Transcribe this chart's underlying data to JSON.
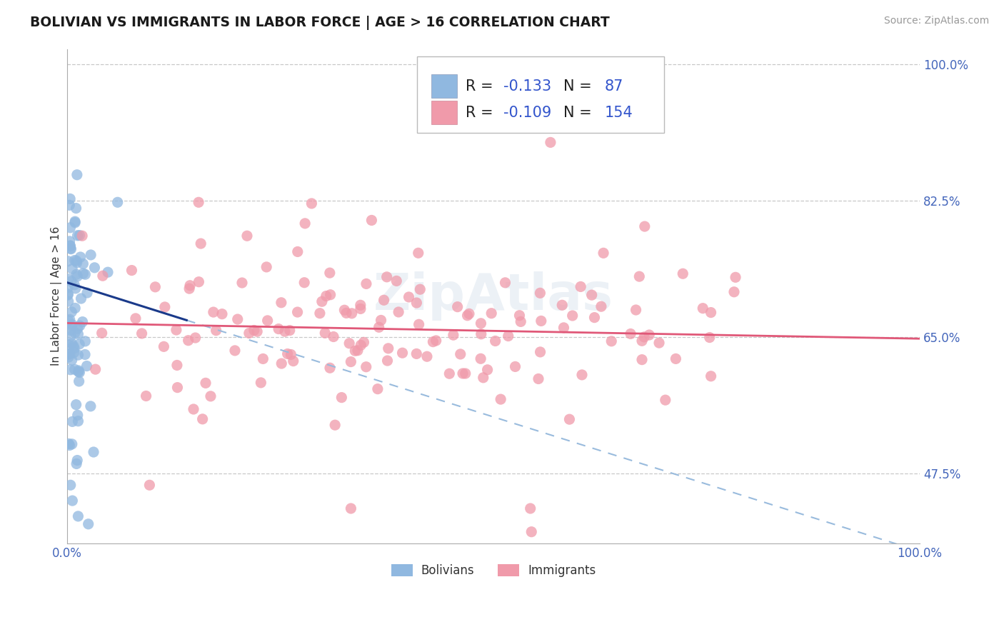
{
  "title": "BOLIVIAN VS IMMIGRANTS IN LABOR FORCE | AGE > 16 CORRELATION CHART",
  "source": "Source: ZipAtlas.com",
  "ylabel": "In Labor Force | Age > 16",
  "xlim": [
    0.0,
    1.0
  ],
  "ylim": [
    0.385,
    1.02
  ],
  "yticks": [
    0.475,
    0.65,
    0.825,
    1.0
  ],
  "ytick_labels": [
    "47.5%",
    "65.0%",
    "82.5%",
    "100.0%"
  ],
  "xticks": [
    0.0,
    1.0
  ],
  "xtick_labels": [
    "0.0%",
    "100.0%"
  ],
  "bolivian_color": "#90b8e0",
  "immigrant_color": "#f09aaa",
  "bolivian_line_color": "#1a3a8a",
  "bolivian_dashed_color": "#99bbdd",
  "immigrant_line_color": "#e05878",
  "R_bolivian": -0.133,
  "N_bolivian": 87,
  "R_immigrant": -0.109,
  "N_immigrant": 154,
  "watermark": "ZipAtlas",
  "background_color": "#ffffff",
  "grid_color": "#c8c8c8",
  "title_color": "#1a1a1a",
  "tick_color": "#4466bb",
  "legend_R_color": "#3355cc",
  "legend_N_color": "#3355cc",
  "seed": 42,
  "bol_line_x0": 0.0,
  "bol_line_y0": 0.72,
  "bol_line_x1": 1.0,
  "bol_line_y1": 0.375,
  "imm_line_x0": 0.0,
  "imm_line_y0": 0.668,
  "imm_line_x1": 1.0,
  "imm_line_y1": 0.648
}
